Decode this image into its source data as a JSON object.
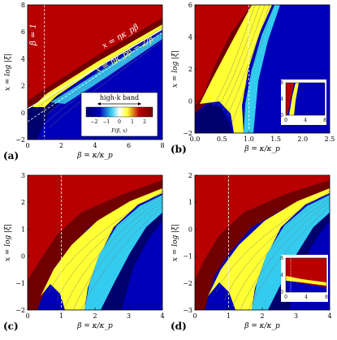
{
  "chart_data": [
    {
      "type": "heatmap",
      "panel_label": "(a)",
      "xlabel": "β = κ/κ_p",
      "ylabel": "x = log |ξ|",
      "xlim": [
        0,
        8
      ],
      "ylim": [
        -2,
        8
      ],
      "xticks": [
        "0",
        "2",
        "4",
        "6",
        "8"
      ],
      "yticks": [
        "−2",
        "0",
        "2",
        "4",
        "6",
        "8"
      ],
      "vline_beta": 1,
      "annotations": [
        "β = 1",
        "x = ηκ_pβ",
        "x = ηκ_pβ − 2/β"
      ],
      "legend": {
        "title": "high-k band",
        "ticks": [
          "−2",
          "−1",
          "0",
          "1",
          "2"
        ],
        "label": "F(β, x)"
      }
    },
    {
      "type": "heatmap",
      "panel_label": "(b)",
      "xlabel": "β = κ/κ_p",
      "ylabel": "x = log |ξ|",
      "xlim": [
        0,
        2.5
      ],
      "ylim": [
        -2,
        6
      ],
      "xticks": [
        "0.0",
        "0.5",
        "1.0",
        "1.5",
        "2.0",
        "2.5"
      ],
      "yticks": [
        "−2",
        "0",
        "2",
        "4",
        "6"
      ],
      "vline_beta": 1,
      "inset": {
        "xticks": [
          "0",
          "4",
          "8"
        ],
        "yticks": [
          "0",
          "4",
          "8"
        ]
      }
    },
    {
      "type": "heatmap",
      "panel_label": "(c)",
      "xlabel": "β = κ/κ_p",
      "ylabel": "x = log |ξ|",
      "xlim": [
        0,
        4
      ],
      "ylim": [
        -2,
        3
      ],
      "xticks": [
        "0",
        "1",
        "2",
        "3",
        "4"
      ],
      "yticks": [
        "−2",
        "−1",
        "0",
        "1",
        "2",
        "3"
      ],
      "vline_beta": 1
    },
    {
      "type": "heatmap",
      "panel_label": "(d)",
      "xlabel": "β = κ/κ_p",
      "ylabel": "x = log |ξ|",
      "xlim": [
        0,
        4
      ],
      "ylim": [
        -3,
        2
      ],
      "xticks": [
        "0",
        "1",
        "2",
        "3",
        "4"
      ],
      "yticks": [
        "−3",
        "−2",
        "−1",
        "0",
        "1",
        "2"
      ],
      "vline_beta": 1,
      "inset": {
        "xticks": [
          "0",
          "4",
          "8"
        ],
        "yticks": [
          "0",
          "4",
          "8"
        ]
      }
    }
  ],
  "colors": {
    "red": "#b80000",
    "dark_red": "#700000",
    "blue": "#0000b8",
    "dark_blue": "#00006e",
    "yellow": "#ffff33",
    "cyan": "#33ccee",
    "contour": "#666666",
    "dashed": "#ffffff"
  }
}
